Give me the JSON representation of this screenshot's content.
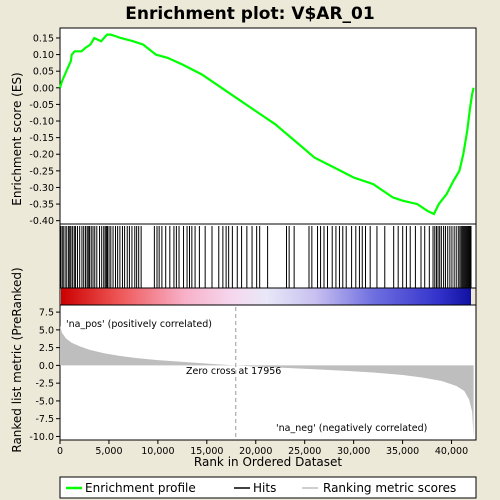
{
  "title": "Enrichment plot: V$AR_01",
  "top_panel": {
    "ylabel": "Enrichment score (ES)"
  },
  "bottom_panel": {
    "ylabel": "Ranked list metric (PreRanked)",
    "xlabel": "Rank in Ordered Dataset",
    "pos_label": "'na_pos' (positively correlated)",
    "neg_label": "'na_neg' (negatively correlated)",
    "zero_cross_label": "Zero cross at 17956"
  },
  "legend": {
    "items": [
      {
        "label": "Enrichment profile",
        "color": "#00ff00"
      },
      {
        "label": "Hits",
        "color": "#000000"
      },
      {
        "label": "Ranking metric scores",
        "color": "#bebebe"
      }
    ]
  },
  "colors": {
    "profile": "#00ff00",
    "metric_fill": "#bebebe",
    "pos_text": "#cc0000",
    "neg_text": "#0000cc"
  },
  "chart_data": {
    "type": "line",
    "x_range": [
      0,
      42500
    ],
    "n_genes": 42300,
    "zero_cross": 17956,
    "es": {
      "ylim": [
        -0.41,
        0.18
      ],
      "yticks": [
        -0.4,
        -0.35,
        -0.3,
        -0.25,
        -0.2,
        -0.15,
        -0.1,
        -0.05,
        0.0,
        0.05,
        0.1,
        0.15
      ],
      "ytick_labels": [
        "-0.40",
        "-0.35",
        "-0.30",
        "-0.25",
        "-0.20",
        "-0.15",
        "-0.10",
        "-0.05",
        "0.00",
        "0.05",
        "0.10",
        "0.15"
      ],
      "points": [
        [
          0,
          0.0
        ],
        [
          200,
          0.02
        ],
        [
          500,
          0.04
        ],
        [
          800,
          0.06
        ],
        [
          1100,
          0.08
        ],
        [
          1200,
          0.1
        ],
        [
          1500,
          0.11
        ],
        [
          2200,
          0.11
        ],
        [
          2600,
          0.12
        ],
        [
          3100,
          0.13
        ],
        [
          3500,
          0.15
        ],
        [
          4200,
          0.14
        ],
        [
          4800,
          0.16
        ],
        [
          5200,
          0.16
        ],
        [
          6200,
          0.15
        ],
        [
          7500,
          0.14
        ],
        [
          8500,
          0.13
        ],
        [
          9800,
          0.1
        ],
        [
          11000,
          0.09
        ],
        [
          12500,
          0.07
        ],
        [
          14500,
          0.04
        ],
        [
          16500,
          0.0
        ],
        [
          18000,
          -0.03
        ],
        [
          20000,
          -0.07
        ],
        [
          22000,
          -0.11
        ],
        [
          24000,
          -0.16
        ],
        [
          26000,
          -0.21
        ],
        [
          28000,
          -0.24
        ],
        [
          30000,
          -0.27
        ],
        [
          32000,
          -0.29
        ],
        [
          34000,
          -0.33
        ],
        [
          35000,
          -0.34
        ],
        [
          36500,
          -0.35
        ],
        [
          37500,
          -0.37
        ],
        [
          38200,
          -0.38
        ],
        [
          38700,
          -0.35
        ],
        [
          39500,
          -0.32
        ],
        [
          40200,
          -0.28
        ],
        [
          40800,
          -0.25
        ],
        [
          41200,
          -0.2
        ],
        [
          41600,
          -0.13
        ],
        [
          41900,
          -0.06
        ],
        [
          42100,
          -0.02
        ],
        [
          42250,
          0.0
        ]
      ]
    },
    "hits": [
      60,
      210,
      330,
      520,
      690,
      880,
      1000,
      1120,
      1290,
      1460,
      1590,
      1790,
      2010,
      2240,
      2420,
      2600,
      2770,
      2890,
      3020,
      3190,
      3370,
      3550,
      3760,
      4040,
      4260,
      4470,
      4620,
      4740,
      4850,
      5010,
      5190,
      5420,
      5670,
      5890,
      6120,
      6380,
      6600,
      6870,
      7090,
      7350,
      7640,
      7830,
      8040,
      8290,
      9640,
      9910,
      10130,
      10410,
      10800,
      11220,
      11640,
      11890,
      12160,
      12620,
      12980,
      13230,
      13470,
      13800,
      14240,
      14830,
      15530,
      16220,
      16640,
      16970,
      17230,
      17610,
      18110,
      18550,
      19090,
      19620,
      20090,
      20400,
      21210,
      23140,
      23410,
      23920,
      25440,
      25730,
      26310,
      26620,
      26970,
      27330,
      27810,
      28190,
      28550,
      28890,
      29240,
      29790,
      30220,
      30590,
      30880,
      31210,
      31690,
      32380,
      33180,
      34090,
      34550,
      35010,
      35390,
      35780,
      36310,
      36880,
      37260,
      37730,
      38110,
      38290,
      38460,
      38620,
      38790,
      38960,
      39190,
      39380,
      39610,
      39830,
      40040,
      40270,
      40480,
      40690,
      40850,
      40980,
      41090,
      41190,
      41290,
      41390,
      41490,
      41590,
      41690,
      41790,
      41890,
      41990
    ],
    "metric": {
      "ylim": [
        -10.5,
        8.5
      ],
      "yticks": [
        -10.0,
        -7.5,
        -5.0,
        -2.5,
        0.0,
        2.5,
        5.0,
        7.5
      ],
      "ytick_labels": [
        "-10.0",
        "-7.5",
        "-5.0",
        "-2.5",
        "0.0",
        "2.5",
        "5.0",
        "7.5"
      ],
      "points": [
        [
          0,
          5.6
        ],
        [
          200,
          4.6
        ],
        [
          600,
          3.8
        ],
        [
          1200,
          3.2
        ],
        [
          2000,
          2.7
        ],
        [
          3000,
          2.2
        ],
        [
          4500,
          1.7
        ],
        [
          6000,
          1.35
        ],
        [
          8000,
          1.0
        ],
        [
          10000,
          0.75
        ],
        [
          12000,
          0.55
        ],
        [
          14000,
          0.35
        ],
        [
          16000,
          0.15
        ],
        [
          17956,
          0.0
        ],
        [
          20000,
          -0.15
        ],
        [
          23000,
          -0.35
        ],
        [
          26000,
          -0.55
        ],
        [
          29000,
          -0.75
        ],
        [
          32000,
          -1.0
        ],
        [
          35000,
          -1.35
        ],
        [
          37000,
          -1.7
        ],
        [
          39000,
          -2.2
        ],
        [
          40500,
          -2.9
        ],
        [
          41300,
          -3.6
        ],
        [
          41800,
          -4.8
        ],
        [
          42100,
          -6.5
        ],
        [
          42250,
          -10.0
        ]
      ]
    },
    "xticks": [
      0,
      5000,
      10000,
      15000,
      20000,
      25000,
      30000,
      35000,
      40000
    ],
    "xtick_labels": [
      "0",
      "5,000",
      "10,000",
      "15,000",
      "20,000",
      "25,000",
      "30,000",
      "35,000",
      "40,000"
    ]
  }
}
